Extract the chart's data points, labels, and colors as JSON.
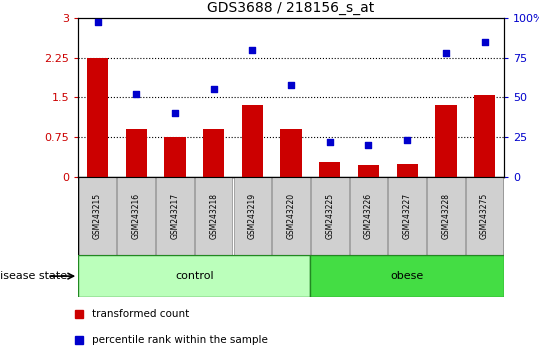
{
  "title": "GDS3688 / 218156_s_at",
  "samples": [
    "GSM243215",
    "GSM243216",
    "GSM243217",
    "GSM243218",
    "GSM243219",
    "GSM243220",
    "GSM243225",
    "GSM243226",
    "GSM243227",
    "GSM243228",
    "GSM243275"
  ],
  "transformed_count": [
    2.25,
    0.9,
    0.75,
    0.9,
    1.35,
    0.9,
    0.28,
    0.22,
    0.25,
    1.35,
    1.55
  ],
  "percentile_rank": [
    97,
    52,
    40,
    55,
    80,
    58,
    22,
    20,
    23,
    78,
    85
  ],
  "control_count": 6,
  "obese_count": 5,
  "bar_color": "#cc0000",
  "dot_color": "#0000cc",
  "control_color": "#bbffbb",
  "obese_color": "#44dd44",
  "label_bg_color": "#d0d0d0",
  "ylim_left": [
    0,
    3
  ],
  "ylim_right": [
    0,
    100
  ],
  "yticks_left": [
    0,
    0.75,
    1.5,
    2.25,
    3.0
  ],
  "ytick_labels_left": [
    "0",
    "0.75",
    "1.5",
    "2.25",
    "3"
  ],
  "yticks_right": [
    0,
    25,
    50,
    75,
    100
  ],
  "ytick_labels_right": [
    "0",
    "25",
    "50",
    "75",
    "100%"
  ],
  "hlines": [
    0.75,
    1.5,
    2.25
  ],
  "legend_red_label": "transformed count",
  "legend_blue_label": "percentile rank within the sample",
  "disease_state_label": "disease state",
  "control_label": "control",
  "obese_label": "obese",
  "title_fontsize": 10,
  "tick_fontsize": 8,
  "label_fontsize": 6,
  "legend_fontsize": 7.5,
  "disease_fontsize": 8,
  "sample_fontsize": 5.5
}
